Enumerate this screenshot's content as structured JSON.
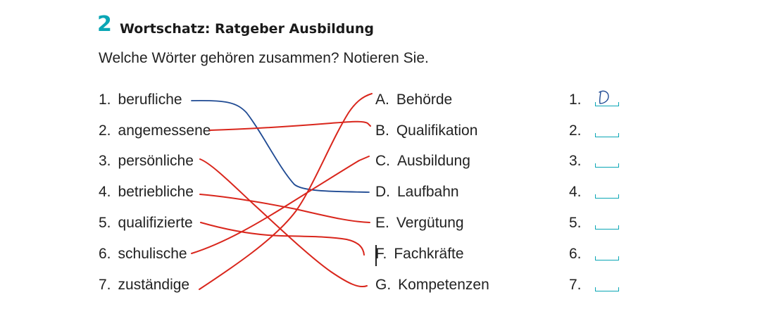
{
  "header": {
    "task_number": "2",
    "title": "Wortschatz: Ratgeber Ausbildung",
    "instruction": "Welche Wörter gehören zusammen? Notieren Sie."
  },
  "left_items": [
    {
      "num": "1.",
      "word": "berufliche"
    },
    {
      "num": "2.",
      "word": "angemessene"
    },
    {
      "num": "3.",
      "word": "persönliche"
    },
    {
      "num": "4.",
      "word": "betriebliche"
    },
    {
      "num": "5.",
      "word": "qualifizierte"
    },
    {
      "num": "6.",
      "word": "schulische"
    },
    {
      "num": "7.",
      "word": "zuständige"
    }
  ],
  "right_items": [
    {
      "num": "A.",
      "word": "Behörde"
    },
    {
      "num": "B.",
      "word": "Qualifikation"
    },
    {
      "num": "C.",
      "word": "Ausbildung"
    },
    {
      "num": "D.",
      "word": "Laufbahn"
    },
    {
      "num": "E.",
      "word": "Vergütung"
    },
    {
      "num": "F.",
      "word": "Fachkräfte"
    },
    {
      "num": "G.",
      "word": "Kompetenzen"
    }
  ],
  "answers": [
    {
      "num": "1.",
      "value": "D"
    },
    {
      "num": "2.",
      "value": ""
    },
    {
      "num": "3.",
      "value": ""
    },
    {
      "num": "4.",
      "value": ""
    },
    {
      "num": "5.",
      "value": ""
    },
    {
      "num": "6.",
      "value": ""
    },
    {
      "num": "7.",
      "value": ""
    }
  ],
  "connections": [
    {
      "from": "1",
      "to": "D",
      "color": "#1f4a93"
    },
    {
      "from": "2",
      "to": "B",
      "color": "#d9261c"
    },
    {
      "from": "3",
      "to": "G",
      "color": "#d9261c"
    },
    {
      "from": "4",
      "to": "E",
      "color": "#d9261c"
    },
    {
      "from": "5",
      "to": "F",
      "color": "#d9261c"
    },
    {
      "from": "6",
      "to": "C",
      "color": "#d9261c"
    },
    {
      "from": "7",
      "to": "A",
      "color": "#d9261c"
    }
  ],
  "colors": {
    "accent": "#0aa6b5",
    "pen_blue": "#1f4a93",
    "pen_red": "#d9261c"
  }
}
